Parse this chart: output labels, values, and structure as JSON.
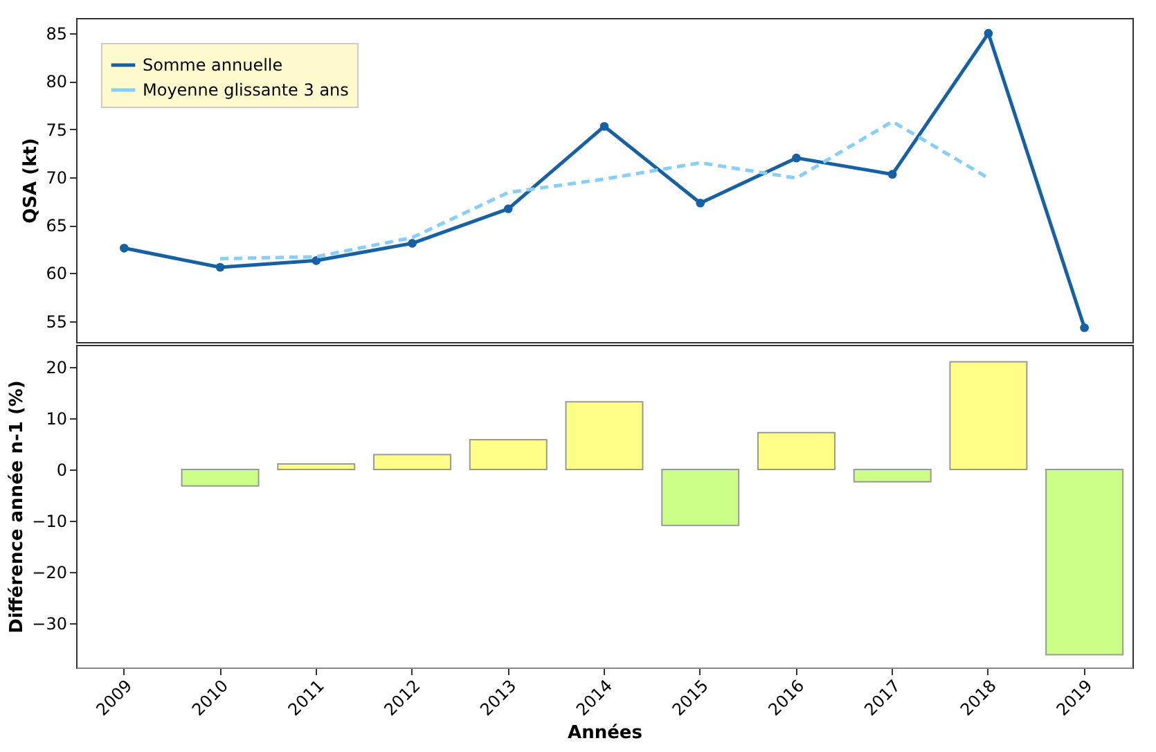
{
  "chart_data": [
    {
      "type": "line",
      "categories": [
        "2009",
        "2010",
        "2011",
        "2012",
        "2013",
        "2014",
        "2015",
        "2016",
        "2017",
        "2018",
        "2019"
      ],
      "ylabel": "QSA (kt)",
      "ylim": [
        52.8,
        86.6
      ],
      "yticks": [
        55,
        60,
        65,
        70,
        75,
        80,
        85
      ],
      "legend": "top left",
      "tick_labels": "y",
      "series": [
        {
          "name": "Somme annuelle",
          "color": "#1660a4",
          "marker": "circle",
          "line_style": "solid",
          "values": [
            62.6,
            60.6,
            61.3,
            63.1,
            66.7,
            75.3,
            67.3,
            72.0,
            70.3,
            85.0,
            54.3
          ]
        },
        {
          "name": "Moyenne glissante 3 ans",
          "color": "#87cefa",
          "marker": "none",
          "line_style": "dashed",
          "values": [
            null,
            61.5,
            61.7,
            63.7,
            68.4,
            69.8,
            71.5,
            69.9,
            75.8,
            69.9,
            null
          ]
        }
      ]
    },
    {
      "type": "bar",
      "categories": [
        "2009",
        "2010",
        "2011",
        "2012",
        "2013",
        "2014",
        "2015",
        "2016",
        "2017",
        "2018",
        "2019"
      ],
      "xlabel": "Années",
      "ylabel": "Différence année n-1 (%)",
      "ylim": [
        -38.6,
        24.3
      ],
      "yticks": [
        -30,
        -20,
        -10,
        0,
        10,
        20
      ],
      "values": [
        null,
        -3.2,
        1.1,
        2.9,
        5.8,
        13.2,
        -10.9,
        7.2,
        -2.4,
        21.0,
        -36.1
      ],
      "colors": [
        null,
        "#ccff88",
        "#ffff88",
        "#ffff88",
        "#ffff88",
        "#ffff88",
        "#ccff88",
        "#ffff88",
        "#ccff88",
        "#ffff88",
        "#ccff88"
      ]
    }
  ]
}
